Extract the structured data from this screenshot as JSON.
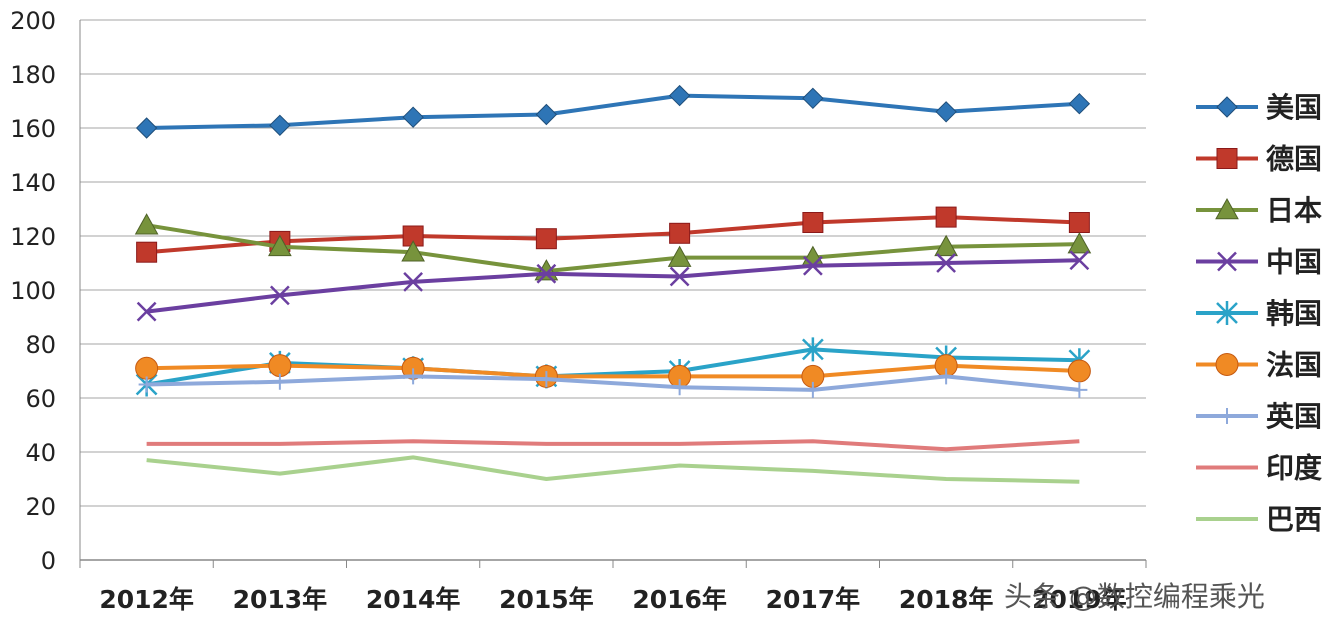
{
  "chart_data": {
    "type": "line",
    "categories": [
      "2012年",
      "2013年",
      "2014年",
      "2015年",
      "2016年",
      "2017年",
      "2018年",
      "2019年"
    ],
    "y_ticks": [
      "0",
      "20",
      "40",
      "60",
      "80",
      "100",
      "120",
      "140",
      "160",
      "180",
      "200"
    ],
    "ylim": [
      0,
      200
    ],
    "grid": true,
    "legend_position": "right",
    "series": [
      {
        "name": "美国",
        "color": "#2E75B6",
        "marker": "diamond",
        "values": [
          160,
          161,
          164,
          165,
          172,
          171,
          166,
          169
        ]
      },
      {
        "name": "德国",
        "color": "#C0392B",
        "marker": "square",
        "values": [
          114,
          118,
          120,
          119,
          121,
          125,
          127,
          125
        ]
      },
      {
        "name": "日本",
        "color": "#77933C",
        "marker": "triangle",
        "values": [
          124,
          116,
          114,
          107,
          112,
          112,
          116,
          117
        ]
      },
      {
        "name": "中国",
        "color": "#6B3FA0",
        "marker": "x",
        "values": [
          92,
          98,
          103,
          106,
          105,
          109,
          110,
          111
        ]
      },
      {
        "name": "韩国",
        "color": "#2AA3C8",
        "marker": "star",
        "values": [
          65,
          73,
          71,
          68,
          70,
          78,
          75,
          74
        ]
      },
      {
        "name": "法国",
        "color": "#F08A24",
        "marker": "circle",
        "values": [
          71,
          72,
          71,
          68,
          68,
          68,
          72,
          70
        ]
      },
      {
        "name": "英国",
        "color": "#8EA9DB",
        "marker": "plus",
        "values": [
          65,
          66,
          68,
          67,
          64,
          63,
          68,
          63
        ]
      },
      {
        "name": "印度",
        "color": "#E07B7B",
        "marker": "none",
        "values": [
          43,
          43,
          44,
          43,
          43,
          44,
          41,
          44
        ]
      },
      {
        "name": "巴西",
        "color": "#A9D18E",
        "marker": "none",
        "values": [
          37,
          32,
          38,
          30,
          35,
          33,
          30,
          29
        ]
      }
    ]
  },
  "watermark": {
    "text": "头条 @数控编程乘光"
  }
}
